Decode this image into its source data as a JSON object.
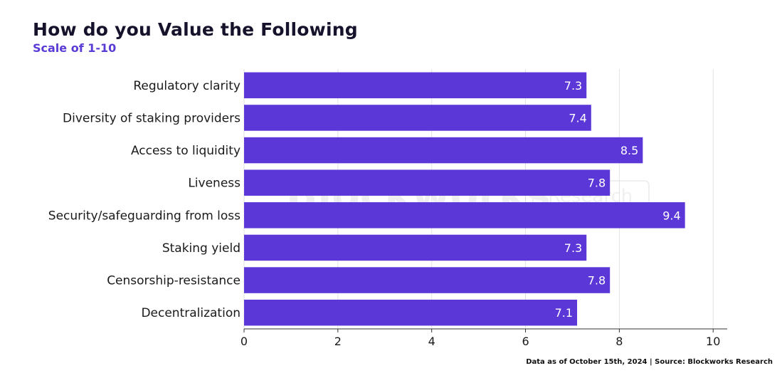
{
  "title": "How do you Value the Following",
  "subtitle": "Scale of 1-10",
  "footer": "Data as of October 15th, 2024 | Source: Blockworks Research",
  "watermark": {
    "brand": "Blockworks",
    "tag": "Research"
  },
  "colors": {
    "bar": "#5b37d8",
    "title": "#16122b",
    "subtitle": "#5b3bd6",
    "grid": "#e2e2e2"
  },
  "chart_data": {
    "type": "bar",
    "orientation": "horizontal",
    "categories": [
      "Regulatory clarity",
      "Diversity of staking providers",
      "Access to liquidity",
      "Liveness",
      "Security/safeguarding from loss",
      "Staking yield",
      "Censorship-resistance",
      "Decentralization"
    ],
    "values": [
      7.3,
      7.4,
      8.5,
      7.8,
      9.4,
      7.3,
      7.8,
      7.1
    ],
    "xlim": [
      0,
      10.3
    ],
    "xticks": [
      0,
      2,
      4,
      6,
      8,
      10
    ],
    "grid": true,
    "data_labels": true
  }
}
